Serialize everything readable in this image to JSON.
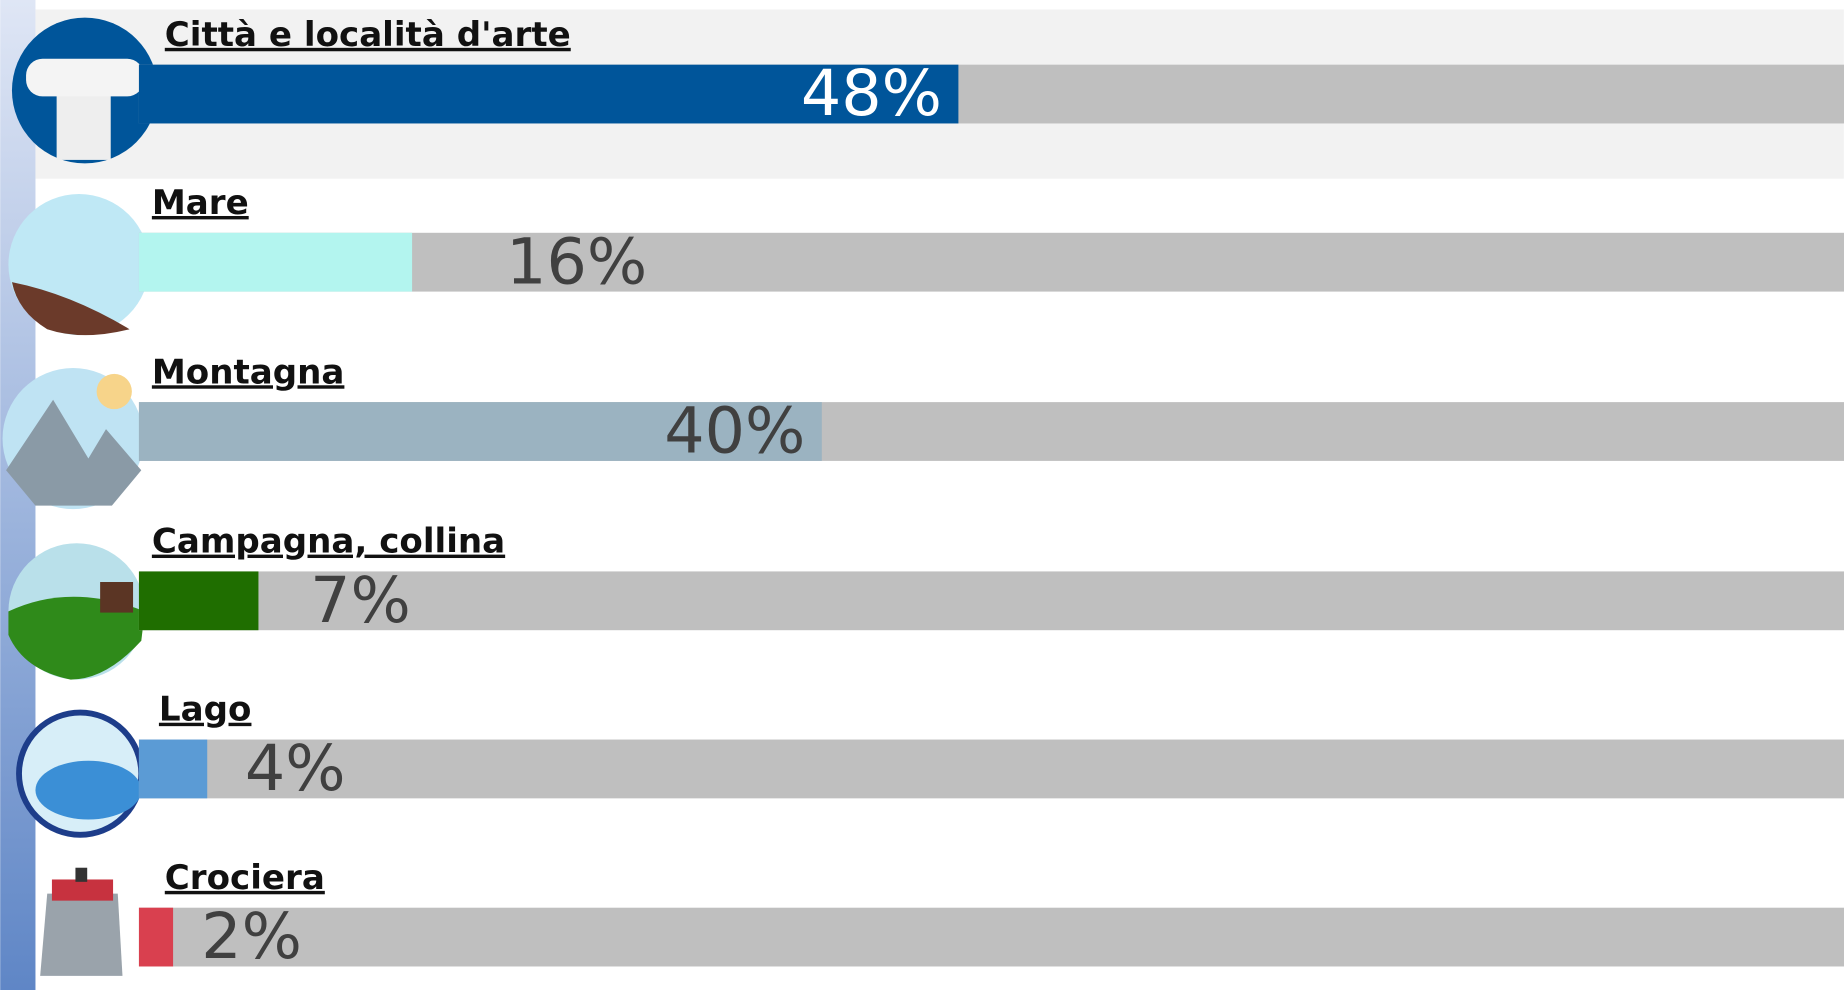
{
  "chart_data": {
    "type": "bar",
    "categories": [
      "Città e località d'arte",
      "Mare",
      "Montagna",
      "Campagna, collina",
      "Lago",
      "Crociera"
    ],
    "values": [
      48,
      16,
      40,
      7,
      4,
      2
    ],
    "value_labels": [
      "48%",
      "16%",
      "40%",
      "7%",
      "4%",
      "2%"
    ],
    "colors": [
      "#00559a",
      "#b3f5ef",
      "#9bb3c1",
      "#1f6e00",
      "#5b9bd5",
      "#d9404f"
    ],
    "xlim": [
      0,
      100
    ]
  }
}
